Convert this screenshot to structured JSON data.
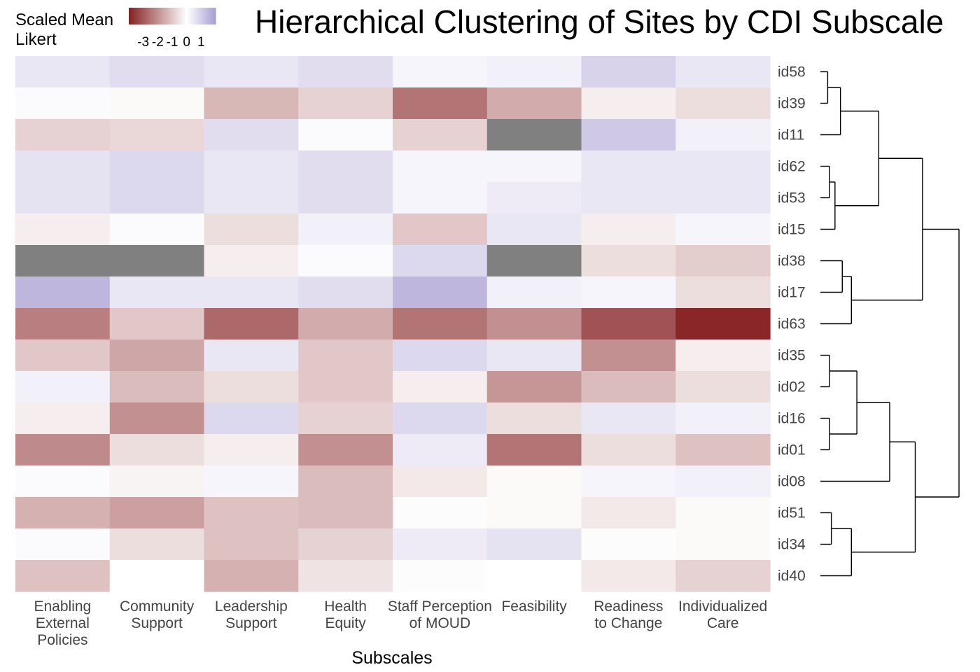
{
  "chart_data": {
    "type": "heatmap",
    "title": "Hierarchical Clustering of Sites by CDI Subscale",
    "xlabel": "Subscales",
    "ylabel": "",
    "legend": {
      "title_lines": [
        "Scaled Mean",
        "Likert"
      ],
      "placement": "top-left",
      "ticks": [
        -3,
        -2,
        -1,
        0,
        1
      ],
      "range": [
        -4,
        2
      ],
      "colors": {
        "low": "#862022",
        "mid": "#ffffff",
        "high": "#a89dd2",
        "missing": "#808080"
      }
    },
    "columns": [
      "Enabling External Policies",
      "Community Support",
      "Leadership Support",
      "Health Equity",
      "Staff Perception of MOUD",
      "Feasibility",
      "Readiness to Change",
      "Individualized Care"
    ],
    "column_label_lines": [
      [
        "Enabling",
        "External",
        "Policies"
      ],
      [
        "Community",
        "Support"
      ],
      [
        "Leadership",
        "Support"
      ],
      [
        "Health",
        "Equity"
      ],
      [
        "Staff Perception",
        "of MOUD"
      ],
      [
        "Feasibility"
      ],
      [
        "Readiness",
        "to Change"
      ],
      [
        "Individualized",
        "Care"
      ]
    ],
    "rows": [
      "id58",
      "id39",
      "id11",
      "id62",
      "id53",
      "id15",
      "id38",
      "id17",
      "id63",
      "id35",
      "id02",
      "id16",
      "id01",
      "id08",
      "id51",
      "id34",
      "id40"
    ],
    "values": [
      [
        0.5,
        0.7,
        0.5,
        0.7,
        0.2,
        0.3,
        0.9,
        0.5
      ],
      [
        0.1,
        -0.1,
        -1.3,
        -0.8,
        -2.5,
        -1.5,
        -0.3,
        -0.6
      ],
      [
        -0.8,
        -0.7,
        0.7,
        0.1,
        -0.8,
        null,
        1.1,
        0.3
      ],
      [
        0.6,
        0.8,
        0.5,
        0.7,
        0.2,
        0.2,
        0.5,
        0.5
      ],
      [
        0.6,
        0.8,
        0.5,
        0.7,
        0.2,
        0.4,
        0.5,
        0.5
      ],
      [
        -0.3,
        0.1,
        -0.6,
        0.3,
        -1.0,
        0.5,
        -0.3,
        0.2
      ],
      [
        null,
        null,
        -0.3,
        0.1,
        0.8,
        null,
        -0.6,
        -0.9
      ],
      [
        1.5,
        0.5,
        0.5,
        0.7,
        1.5,
        0.3,
        0.2,
        -0.6
      ],
      [
        -2.3,
        -1.0,
        -2.7,
        -1.5,
        -2.5,
        -2.0,
        -3.1,
        -3.9
      ],
      [
        -1.0,
        -1.6,
        0.5,
        -1.0,
        0.8,
        0.5,
        -2.0,
        -0.3
      ],
      [
        0.3,
        -1.2,
        -0.6,
        -1.0,
        -0.3,
        -1.9,
        -1.2,
        -0.6
      ],
      [
        -0.3,
        -2.0,
        0.8,
        -0.8,
        0.8,
        -0.6,
        0.5,
        0.3
      ],
      [
        -2.1,
        -0.6,
        -0.3,
        -2.0,
        0.4,
        -2.5,
        -0.6,
        -1.1
      ],
      [
        0.1,
        -0.2,
        0.2,
        -1.2,
        -0.4,
        -0.1,
        0.2,
        0.3
      ],
      [
        -1.4,
        -1.7,
        -1.1,
        -1.2,
        -0.05,
        -0.1,
        -0.4,
        -0.1
      ],
      [
        0.1,
        -0.6,
        -1.1,
        -0.8,
        0.4,
        0.6,
        -0.05,
        -0.1
      ],
      [
        -1.1,
        0.0,
        -1.4,
        -0.5,
        -0.05,
        0.0,
        -0.4,
        -0.8
      ]
    ],
    "dendrogram": {
      "leaf_order": [
        "id58",
        "id39",
        "id11",
        "id62",
        "id53",
        "id15",
        "id38",
        "id17",
        "id63",
        "id35",
        "id02",
        "id16",
        "id01",
        "id08",
        "id51",
        "id34",
        "id40"
      ],
      "merges": [
        {
          "children": [
            "id58",
            "id39"
          ],
          "height": 0.4
        },
        {
          "children": [
            1,
            "id11"
          ],
          "height": 1.1
        },
        {
          "children": [
            "id62",
            "id53"
          ],
          "height": 0.5
        },
        {
          "children": [
            3,
            "id15"
          ],
          "height": 0.8
        },
        {
          "children": [
            2,
            4
          ],
          "height": 3.2
        },
        {
          "children": [
            "id38",
            "id17"
          ],
          "height": 1.2
        },
        {
          "children": [
            6,
            "id63"
          ],
          "height": 1.7
        },
        {
          "children": [
            5,
            7
          ],
          "height": 5.6
        },
        {
          "children": [
            "id35",
            "id02"
          ],
          "height": 0.5
        },
        {
          "children": [
            "id16",
            "id01"
          ],
          "height": 0.5
        },
        {
          "children": [
            9,
            10
          ],
          "height": 2.0
        },
        {
          "children": [
            11,
            "id08"
          ],
          "height": 3.8
        },
        {
          "children": [
            "id51",
            "id34"
          ],
          "height": 0.6
        },
        {
          "children": [
            13,
            "id40"
          ],
          "height": 1.7
        },
        {
          "children": [
            12,
            14
          ],
          "height": 5.2
        },
        {
          "children": [
            8,
            15
          ],
          "height": 7.6
        }
      ]
    }
  }
}
